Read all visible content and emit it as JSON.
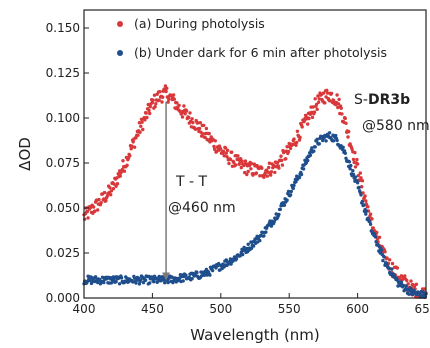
{
  "chart_data": {
    "type": "scatter",
    "xlabel": "Wavelength (nm)",
    "ylabel": "ΔOD",
    "xlim": [
      400,
      650
    ],
    "ylim": [
      0,
      0.16
    ],
    "x_ticks": [
      400,
      450,
      500,
      550,
      600,
      650
    ],
    "x_tick_labels": [
      "400",
      "450",
      "500",
      "550",
      "600",
      "650"
    ],
    "y_ticks": [
      0.0,
      0.025,
      0.05,
      0.075,
      0.1,
      0.125,
      0.15
    ],
    "y_tick_labels": [
      "0.000",
      "0.025",
      "0.050",
      "0.075",
      "0.100",
      "0.125",
      "0.150"
    ],
    "grid": false,
    "legend_position": "top-left",
    "series": [
      {
        "name": "(a) During photolysis",
        "color": "#d9383a",
        "x": [
          400,
          410,
          420,
          430,
          440,
          450,
          455,
          460,
          465,
          470,
          480,
          490,
          500,
          510,
          520,
          530,
          540,
          550,
          560,
          570,
          575,
          580,
          585,
          590,
          600,
          610,
          620,
          630,
          640,
          650
        ],
        "y": [
          0.045,
          0.052,
          0.06,
          0.075,
          0.093,
          0.108,
          0.112,
          0.114,
          0.11,
          0.105,
          0.098,
          0.09,
          0.082,
          0.076,
          0.072,
          0.07,
          0.073,
          0.082,
          0.095,
          0.108,
          0.112,
          0.113,
          0.11,
          0.1,
          0.072,
          0.042,
          0.022,
          0.012,
          0.005,
          0.002
        ]
      },
      {
        "name": "(b) Under dark for 6 min after photolysis",
        "color": "#1f4e8c",
        "x": [
          400,
          420,
          440,
          460,
          480,
          490,
          500,
          510,
          520,
          530,
          540,
          550,
          560,
          565,
          570,
          575,
          580,
          585,
          590,
          600,
          610,
          620,
          630,
          640,
          650
        ],
        "y": [
          0.01,
          0.01,
          0.01,
          0.01,
          0.012,
          0.014,
          0.018,
          0.022,
          0.028,
          0.035,
          0.045,
          0.058,
          0.072,
          0.08,
          0.086,
          0.089,
          0.09,
          0.088,
          0.082,
          0.062,
          0.038,
          0.02,
          0.008,
          0.003,
          0.001
        ]
      }
    ],
    "annotations": {
      "tt_line1": "T - T",
      "tt_line2": "@460 nm",
      "tt_arrow": {
        "x": 460,
        "y_from": 0.109,
        "y_to": 0.012
      },
      "compound_prefix": "S-",
      "compound_bold": "DR3b",
      "compound_line2": "@580 nm"
    }
  }
}
